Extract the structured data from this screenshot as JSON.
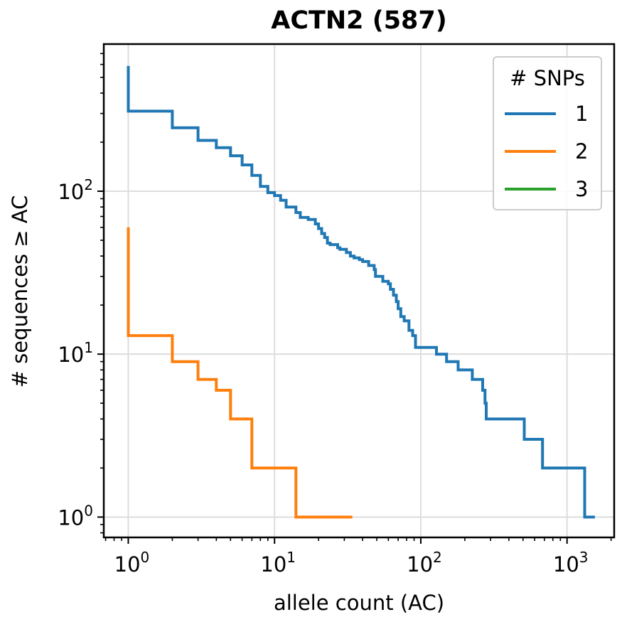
{
  "chart_data": {
    "type": "line",
    "title": "ACTN2 (587)",
    "xlabel": "allele count (AC)",
    "ylabel": "# sequences ≥ AC",
    "xscale": "log",
    "yscale": "log",
    "xlim": [
      0.68,
      2100
    ],
    "ylim": [
      0.75,
      800
    ],
    "x_ticks": [
      {
        "base": "10",
        "exp": "0",
        "value": 1
      },
      {
        "base": "10",
        "exp": "1",
        "value": 10
      },
      {
        "base": "10",
        "exp": "2",
        "value": 100
      },
      {
        "base": "10",
        "exp": "3",
        "value": 1000
      }
    ],
    "y_ticks": [
      {
        "base": "10",
        "exp": "0",
        "value": 1
      },
      {
        "base": "10",
        "exp": "1",
        "value": 10
      },
      {
        "base": "10",
        "exp": "2",
        "value": 100
      }
    ],
    "grid": true,
    "legend": {
      "title": "# SNPs",
      "placement": "top-right"
    },
    "series": [
      {
        "name": "1",
        "color": "#1f77b4",
        "points": [
          [
            1,
            587
          ],
          [
            1,
            310
          ],
          [
            2,
            310
          ],
          [
            2,
            245
          ],
          [
            3,
            245
          ],
          [
            3,
            205
          ],
          [
            4,
            205
          ],
          [
            4,
            185
          ],
          [
            5,
            185
          ],
          [
            5,
            165
          ],
          [
            6,
            165
          ],
          [
            6,
            145
          ],
          [
            7,
            145
          ],
          [
            7,
            125
          ],
          [
            8,
            125
          ],
          [
            8,
            107
          ],
          [
            9,
            107
          ],
          [
            9,
            98
          ],
          [
            10,
            98
          ],
          [
            10,
            94
          ],
          [
            11,
            94
          ],
          [
            11,
            88
          ],
          [
            12,
            88
          ],
          [
            12,
            80
          ],
          [
            14,
            80
          ],
          [
            14,
            74
          ],
          [
            15,
            74
          ],
          [
            15,
            69
          ],
          [
            17,
            69
          ],
          [
            17,
            67
          ],
          [
            19,
            67
          ],
          [
            19,
            63
          ],
          [
            20,
            63
          ],
          [
            20,
            59
          ],
          [
            21,
            59
          ],
          [
            21,
            55
          ],
          [
            22,
            55
          ],
          [
            22,
            52
          ],
          [
            23,
            52
          ],
          [
            23,
            48
          ],
          [
            24,
            48
          ],
          [
            24,
            47
          ],
          [
            27,
            47
          ],
          [
            27,
            45
          ],
          [
            28,
            45
          ],
          [
            28,
            44
          ],
          [
            31,
            44
          ],
          [
            31,
            42
          ],
          [
            33,
            42
          ],
          [
            33,
            40
          ],
          [
            35,
            40
          ],
          [
            35,
            39
          ],
          [
            38,
            39
          ],
          [
            38,
            38
          ],
          [
            40,
            38
          ],
          [
            40,
            37
          ],
          [
            44,
            37
          ],
          [
            44,
            35
          ],
          [
            48,
            35
          ],
          [
            48,
            33
          ],
          [
            49,
            33
          ],
          [
            49,
            30
          ],
          [
            55,
            30
          ],
          [
            55,
            28
          ],
          [
            60,
            28
          ],
          [
            60,
            27
          ],
          [
            62,
            27
          ],
          [
            62,
            25
          ],
          [
            65,
            25
          ],
          [
            65,
            23
          ],
          [
            68,
            23
          ],
          [
            68,
            21
          ],
          [
            70,
            21
          ],
          [
            70,
            19
          ],
          [
            73,
            19
          ],
          [
            73,
            17
          ],
          [
            77,
            17
          ],
          [
            77,
            16
          ],
          [
            83,
            16
          ],
          [
            83,
            14
          ],
          [
            88,
            14
          ],
          [
            88,
            13
          ],
          [
            92,
            13
          ],
          [
            92,
            11
          ],
          [
            128,
            11
          ],
          [
            128,
            10
          ],
          [
            150,
            10
          ],
          [
            150,
            9
          ],
          [
            180,
            9
          ],
          [
            180,
            8
          ],
          [
            225,
            8
          ],
          [
            225,
            7
          ],
          [
            265,
            7
          ],
          [
            265,
            6
          ],
          [
            275,
            6
          ],
          [
            275,
            5
          ],
          [
            280,
            5
          ],
          [
            280,
            4
          ],
          [
            510,
            4
          ],
          [
            510,
            3
          ],
          [
            680,
            3
          ],
          [
            680,
            2
          ],
          [
            1320,
            2
          ],
          [
            1320,
            1
          ],
          [
            1550,
            1
          ]
        ]
      },
      {
        "name": "2",
        "color": "#ff7f0e",
        "points": [
          [
            1,
            60
          ],
          [
            1,
            13
          ],
          [
            2,
            13
          ],
          [
            2,
            9
          ],
          [
            3,
            9
          ],
          [
            3,
            7
          ],
          [
            4,
            7
          ],
          [
            4,
            6
          ],
          [
            5,
            6
          ],
          [
            5,
            4
          ],
          [
            7,
            4
          ],
          [
            7,
            2
          ],
          [
            14,
            2
          ],
          [
            14,
            1
          ],
          [
            34,
            1
          ]
        ]
      },
      {
        "name": "3",
        "color": "#2ca02c",
        "points": []
      }
    ]
  }
}
